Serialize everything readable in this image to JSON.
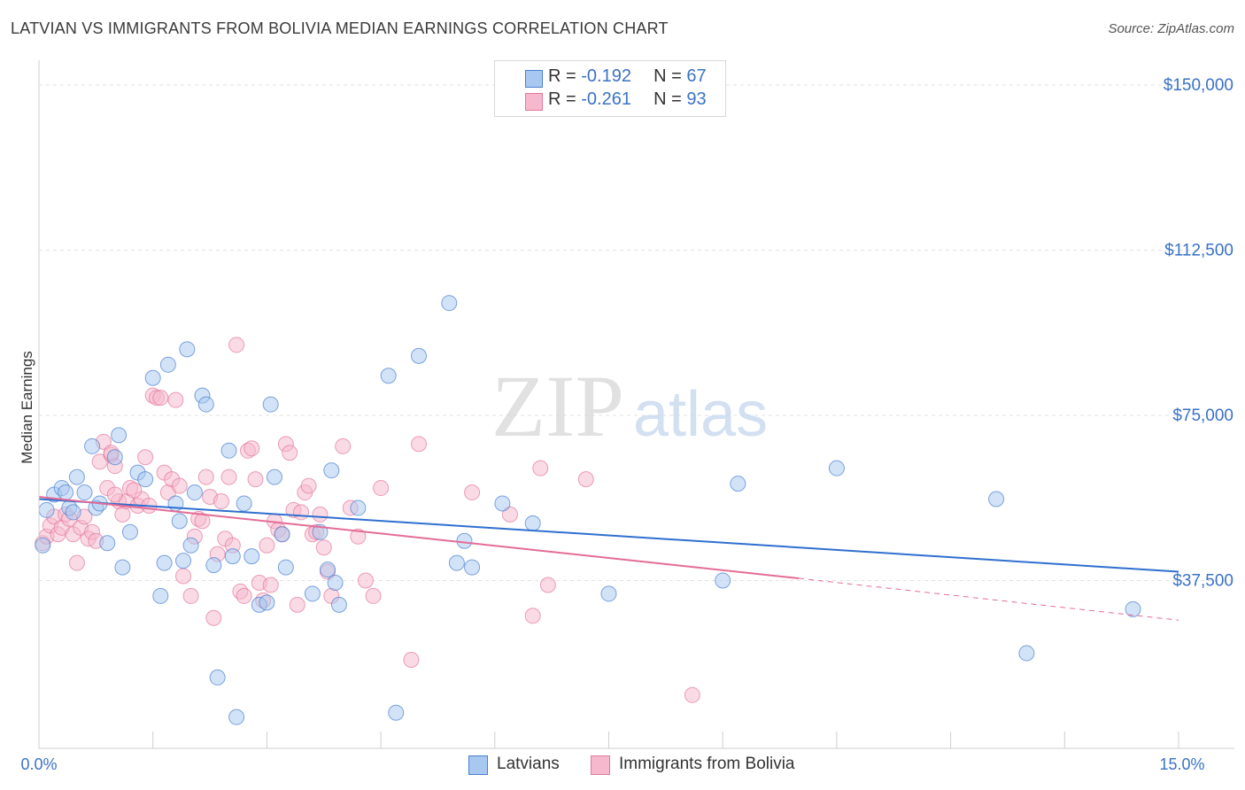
{
  "header": {
    "title": "LATVIAN VS IMMIGRANTS FROM BOLIVIA MEDIAN EARNINGS CORRELATION CHART",
    "source": "Source: ZipAtlas.com"
  },
  "colors": {
    "latvians_fill": "#a8c8f0",
    "latvians_stroke": "#4a7fd0",
    "latvians_line": "#2f6fcf",
    "bolivia_fill": "#f6b8cc",
    "bolivia_stroke": "#e3779c",
    "bolivia_line": "#e46c97",
    "axis_label": "#3a72c6",
    "grid": "#e2e2e2"
  },
  "stats": [
    {
      "r_label": "R = ",
      "r_value": "-0.192",
      "n_label": "N = ",
      "n_value": "67"
    },
    {
      "r_label": "R = ",
      "r_value": "-0.261",
      "n_label": "N = ",
      "n_value": "93"
    }
  ],
  "watermark": {
    "zip": "ZIP",
    "atlas": "atlas"
  },
  "chart_data": {
    "type": "scatter",
    "title": "LATVIAN VS IMMIGRANTS FROM BOLIVIA MEDIAN EARNINGS CORRELATION CHART",
    "xlabel": "",
    "ylabel": "Median Earnings",
    "xlim": [
      0,
      15
    ],
    "ylim": [
      0,
      150000
    ],
    "x_tick_labels": [
      "0.0%",
      "15.0%"
    ],
    "y_ticks": [
      37500,
      75000,
      112500,
      150000
    ],
    "y_tick_labels": [
      "$37,500",
      "$75,000",
      "$112,500",
      "$150,000"
    ],
    "grid": true,
    "legend_position": "bottom-center",
    "series": [
      {
        "name": "Latvians",
        "r": -0.192,
        "n": 67,
        "trend": {
          "x": [
            0,
            15
          ],
          "y": [
            56000,
            39500
          ]
        },
        "points": [
          [
            0.1,
            53500
          ],
          [
            0.2,
            57000
          ],
          [
            0.3,
            58500
          ],
          [
            0.35,
            57500
          ],
          [
            0.4,
            54000
          ],
          [
            0.45,
            53000
          ],
          [
            0.5,
            61000
          ],
          [
            0.6,
            57500
          ],
          [
            0.7,
            68000
          ],
          [
            0.75,
            54000
          ],
          [
            0.8,
            55000
          ],
          [
            0.9,
            46000
          ],
          [
            1.0,
            65500
          ],
          [
            1.05,
            70500
          ],
          [
            1.1,
            40500
          ],
          [
            1.2,
            48500
          ],
          [
            1.3,
            62000
          ],
          [
            1.4,
            60500
          ],
          [
            1.5,
            83500
          ],
          [
            1.6,
            34000
          ],
          [
            1.65,
            41500
          ],
          [
            1.7,
            86500
          ],
          [
            1.8,
            55000
          ],
          [
            1.85,
            51000
          ],
          [
            1.9,
            42000
          ],
          [
            1.95,
            90000
          ],
          [
            2.0,
            45500
          ],
          [
            2.05,
            57500
          ],
          [
            2.15,
            79500
          ],
          [
            2.2,
            77500
          ],
          [
            2.3,
            41000
          ],
          [
            2.35,
            15500
          ],
          [
            2.5,
            67000
          ],
          [
            2.55,
            43000
          ],
          [
            2.6,
            6500
          ],
          [
            2.7,
            55000
          ],
          [
            2.8,
            43000
          ],
          [
            2.9,
            32000
          ],
          [
            3.0,
            32500
          ],
          [
            3.05,
            77500
          ],
          [
            3.1,
            61000
          ],
          [
            3.2,
            48000
          ],
          [
            3.25,
            40500
          ],
          [
            3.6,
            34500
          ],
          [
            3.7,
            48500
          ],
          [
            3.8,
            40000
          ],
          [
            3.85,
            62500
          ],
          [
            3.9,
            37000
          ],
          [
            3.95,
            32000
          ],
          [
            4.2,
            54000
          ],
          [
            4.6,
            84000
          ],
          [
            4.7,
            7500
          ],
          [
            5.0,
            88500
          ],
          [
            5.4,
            100500
          ],
          [
            5.5,
            41500
          ],
          [
            5.6,
            46500
          ],
          [
            5.7,
            40500
          ],
          [
            6.1,
            55000
          ],
          [
            6.5,
            50500
          ],
          [
            7.5,
            34500
          ],
          [
            9.0,
            37500
          ],
          [
            9.2,
            59500
          ],
          [
            10.5,
            63000
          ],
          [
            12.6,
            56000
          ],
          [
            13.0,
            21000
          ],
          [
            14.4,
            31000
          ],
          [
            0.05,
            45500
          ]
        ]
      },
      {
        "name": "Immigrants from Bolivia",
        "r": -0.261,
        "n": 93,
        "trend": {
          "x": [
            0,
            10
          ],
          "y": [
            56500,
            38000
          ]
        },
        "trend_dashed": {
          "x": [
            10,
            15
          ],
          "y": [
            38000,
            28500
          ]
        },
        "points": [
          [
            0.05,
            46000
          ],
          [
            0.1,
            47500
          ],
          [
            0.15,
            50000
          ],
          [
            0.2,
            52000
          ],
          [
            0.25,
            48000
          ],
          [
            0.3,
            49500
          ],
          [
            0.35,
            52500
          ],
          [
            0.4,
            51500
          ],
          [
            0.45,
            48000
          ],
          [
            0.5,
            41500
          ],
          [
            0.55,
            49500
          ],
          [
            0.6,
            52000
          ],
          [
            0.65,
            47000
          ],
          [
            0.7,
            48500
          ],
          [
            0.75,
            46500
          ],
          [
            0.8,
            64500
          ],
          [
            0.85,
            69000
          ],
          [
            0.9,
            58500
          ],
          [
            0.95,
            66000
          ],
          [
            1.0,
            63500
          ],
          [
            1.05,
            55500
          ],
          [
            1.1,
            52500
          ],
          [
            1.15,
            55500
          ],
          [
            1.2,
            58500
          ],
          [
            1.3,
            54500
          ],
          [
            1.35,
            56000
          ],
          [
            1.4,
            65500
          ],
          [
            1.45,
            54500
          ],
          [
            1.5,
            79500
          ],
          [
            1.55,
            79000
          ],
          [
            1.6,
            79000
          ],
          [
            1.65,
            62000
          ],
          [
            1.7,
            57500
          ],
          [
            1.75,
            60500
          ],
          [
            1.8,
            78500
          ],
          [
            1.85,
            59000
          ],
          [
            1.9,
            38500
          ],
          [
            2.0,
            34000
          ],
          [
            2.05,
            47500
          ],
          [
            2.1,
            51500
          ],
          [
            2.15,
            51000
          ],
          [
            2.2,
            61000
          ],
          [
            2.25,
            56500
          ],
          [
            2.3,
            29000
          ],
          [
            2.35,
            43500
          ],
          [
            2.4,
            55500
          ],
          [
            2.45,
            47000
          ],
          [
            2.5,
            61000
          ],
          [
            2.55,
            45500
          ],
          [
            2.6,
            91000
          ],
          [
            2.65,
            35000
          ],
          [
            2.7,
            34000
          ],
          [
            2.75,
            67000
          ],
          [
            2.8,
            67500
          ],
          [
            2.85,
            60500
          ],
          [
            2.9,
            37000
          ],
          [
            3.0,
            45500
          ],
          [
            3.05,
            36500
          ],
          [
            3.1,
            51000
          ],
          [
            3.15,
            49000
          ],
          [
            3.2,
            48000
          ],
          [
            3.25,
            68500
          ],
          [
            3.3,
            66500
          ],
          [
            3.35,
            53500
          ],
          [
            3.4,
            32000
          ],
          [
            3.45,
            53000
          ],
          [
            3.5,
            57500
          ],
          [
            3.55,
            59000
          ],
          [
            3.6,
            48000
          ],
          [
            3.65,
            48500
          ],
          [
            3.7,
            52500
          ],
          [
            3.75,
            45000
          ],
          [
            3.8,
            39500
          ],
          [
            3.85,
            34000
          ],
          [
            4.0,
            68000
          ],
          [
            4.1,
            54000
          ],
          [
            4.2,
            47500
          ],
          [
            4.3,
            37500
          ],
          [
            4.4,
            34000
          ],
          [
            4.5,
            58500
          ],
          [
            4.9,
            19500
          ],
          [
            5.0,
            68500
          ],
          [
            5.7,
            57500
          ],
          [
            6.2,
            52500
          ],
          [
            6.5,
            29500
          ],
          [
            6.6,
            63000
          ],
          [
            6.7,
            36500
          ],
          [
            7.2,
            60500
          ],
          [
            8.6,
            11500
          ],
          [
            0.95,
            66500
          ],
          [
            1.0,
            57000
          ],
          [
            1.25,
            58000
          ],
          [
            2.95,
            33000
          ]
        ]
      }
    ]
  },
  "legend": [
    {
      "label": "Latvians"
    },
    {
      "label": "Immigrants from Bolivia"
    }
  ]
}
